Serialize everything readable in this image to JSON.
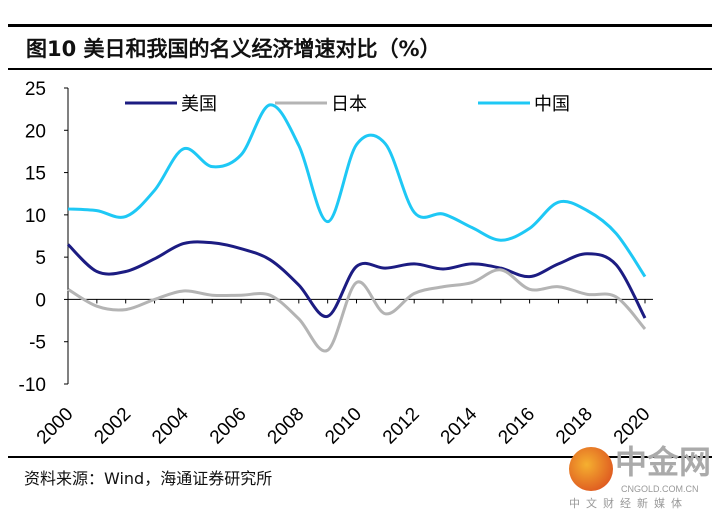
{
  "title": "图10 美日和我国的名义经济增速对比（%）",
  "source": "资料来源：Wind，海通证券研究所",
  "logo": {
    "name": "中金网",
    "domain": "CNGOLD.COM.CN",
    "tagline": "中文财经新媒体"
  },
  "chart_data": {
    "type": "line",
    "title": "",
    "xlabel": "",
    "ylabel": "",
    "ylim": [
      -10,
      25
    ],
    "yticks": [
      -10,
      -5,
      0,
      5,
      10,
      15,
      20,
      25
    ],
    "x": [
      2000,
      2001,
      2002,
      2003,
      2004,
      2005,
      2006,
      2007,
      2008,
      2009,
      2010,
      2011,
      2012,
      2013,
      2014,
      2015,
      2016,
      2017,
      2018,
      2019,
      2020
    ],
    "xtick_labels": [
      "2000",
      "2002",
      "2004",
      "2006",
      "2008",
      "2010",
      "2012",
      "2014",
      "2016",
      "2018",
      "2020"
    ],
    "legend_placement": "top",
    "grid": false,
    "series": [
      {
        "name": "美国",
        "color": "#1c1c82",
        "values": [
          6.5,
          3.3,
          3.3,
          4.8,
          6.6,
          6.7,
          6.0,
          4.7,
          1.7,
          -2.0,
          3.9,
          3.7,
          4.2,
          3.6,
          4.2,
          3.7,
          2.7,
          4.2,
          5.4,
          4.1,
          -2.2
        ]
      },
      {
        "name": "日本",
        "color": "#b4b4b4",
        "values": [
          1.2,
          -0.8,
          -1.2,
          0.0,
          1.0,
          0.5,
          0.5,
          0.5,
          -2.3,
          -6.0,
          2.0,
          -1.7,
          0.7,
          1.5,
          2.0,
          3.5,
          1.2,
          1.5,
          0.6,
          0.3,
          -3.5
        ]
      },
      {
        "name": "中国",
        "color": "#1ec8f5",
        "values": [
          10.7,
          10.5,
          9.8,
          12.9,
          17.8,
          15.7,
          17.1,
          23.0,
          18.2,
          9.2,
          18.3,
          18.4,
          10.3,
          10.1,
          8.5,
          7.0,
          8.4,
          11.5,
          10.5,
          7.8,
          2.7
        ]
      }
    ]
  }
}
